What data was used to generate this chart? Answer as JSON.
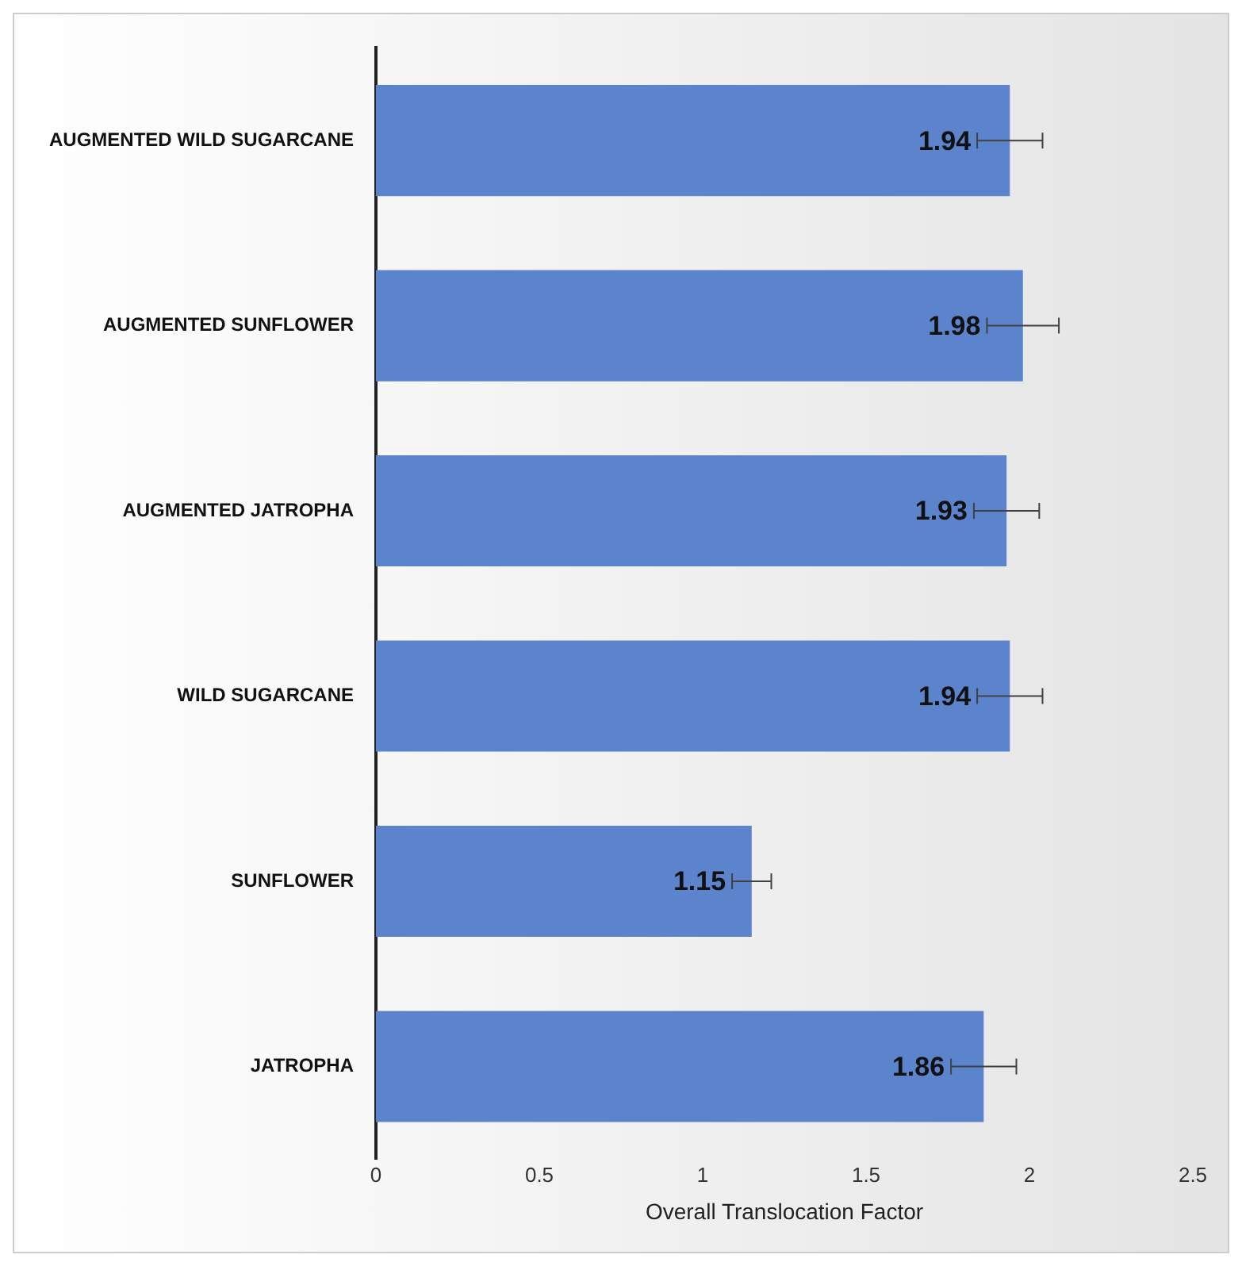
{
  "chart_data": {
    "type": "bar",
    "orientation": "horizontal",
    "xlabel": "Overall Translocation Factor",
    "categories": [
      "AUGMENTED WILD SUGARCANE",
      "AUGMENTED SUNFLOWER",
      "AUGMENTED JATROPHA",
      "WILD SUGARCANE",
      "SUNFLOWER",
      "JATROPHA"
    ],
    "values": [
      1.94,
      1.98,
      1.93,
      1.94,
      1.15,
      1.86
    ],
    "errors": [
      0.1,
      0.11,
      0.1,
      0.1,
      0.06,
      0.1
    ],
    "color": "#5b84cc",
    "xlim": [
      0,
      2.5
    ],
    "xticks": [
      0,
      0.5,
      1,
      1.5,
      2,
      2.5
    ],
    "grid": false,
    "legend": false,
    "data_labels": true
  }
}
